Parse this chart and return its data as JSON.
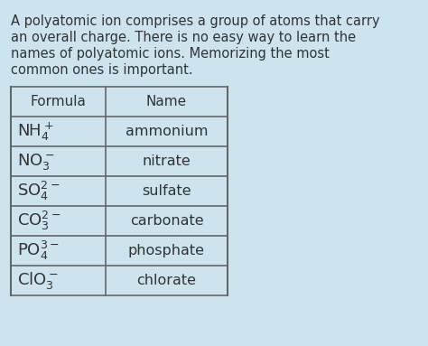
{
  "background_color": "#cde4ee",
  "text_color": "#333333",
  "lines": [
    "A polyatomic ion comprises a group of atoms that carry",
    "an overall charge. There is no easy way to learn the",
    "names of polyatomic ions. Memorizing the most",
    "common ones is important."
  ],
  "table_headers": [
    "Formula",
    "Name"
  ],
  "table_rows": [
    [
      "NH$_4^+$",
      "ammonium"
    ],
    [
      "NO$_3^-$",
      "nitrate"
    ],
    [
      "SO$_4^{2-}$",
      "sulfate"
    ],
    [
      "CO$_3^{2-}$",
      "carbonate"
    ],
    [
      "PO$_4^{3-}$",
      "phosphate"
    ],
    [
      "ClO$_3^-$",
      "chlorate"
    ]
  ],
  "table_border_color": "#666666",
  "table_bg_color": "#cde4ee",
  "font_size_paragraph": 10.5,
  "font_size_table_formula": 13,
  "font_size_table_name": 11.5,
  "font_size_header": 11
}
